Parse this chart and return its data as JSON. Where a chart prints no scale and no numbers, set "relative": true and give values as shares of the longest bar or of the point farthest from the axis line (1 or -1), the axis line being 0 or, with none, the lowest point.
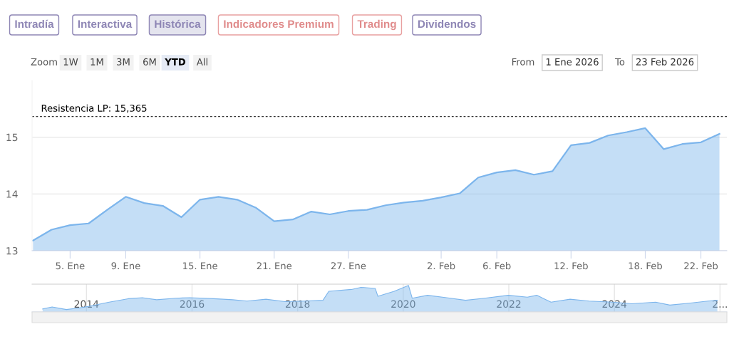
{
  "chart_data": [
    {
      "type": "area",
      "categories": [
        null,
        null,
        "5. Ene",
        null,
        null,
        "9. Ene",
        null,
        null,
        null,
        "15. Ene",
        null,
        null,
        null,
        "21. Ene",
        null,
        null,
        null,
        "27. Ene",
        null,
        null,
        null,
        null,
        "2. Feb",
        null,
        null,
        "6. Feb",
        null,
        null,
        null,
        "12. Feb",
        null,
        null,
        null,
        "18. Feb",
        null,
        null,
        "22. Feb",
        null
      ],
      "series": [
        {
          "color": "#7cb5ec",
          "values": [
            13.18,
            13.37,
            13.45,
            13.48,
            13.72,
            13.95,
            13.84,
            13.79,
            13.59,
            13.9,
            13.95,
            13.9,
            13.76,
            13.52,
            13.55,
            13.69,
            13.64,
            13.7,
            13.72,
            13.8,
            13.85,
            13.88,
            13.94,
            14.01,
            14.29,
            14.38,
            14.42,
            14.34,
            14.4,
            14.86,
            14.9,
            15.03,
            15.09,
            15.16,
            14.79,
            14.88,
            14.91,
            15.06
          ]
        }
      ],
      "ylim": [
        13,
        16
      ],
      "yticks": [
        13,
        14,
        15
      ],
      "grid": "y",
      "ref_lines": [
        {
          "axis": "y",
          "value": 15.365,
          "label": "Resistencia LP: 15,365",
          "color": "#333333",
          "line_style": "dashed"
        }
      ],
      "annotations": [
        "Intradía",
        "Interactiva",
        "Histórica",
        "Indicadores Premium",
        "Trading",
        "Dividendos",
        "Zoom",
        "1W",
        "1M",
        "3M",
        "6M",
        "YTD",
        "All",
        "From",
        "1 Ene 2026",
        "To",
        "23 Feb 2026"
      ]
    },
    {
      "type": "area",
      "relative": true,
      "x": [
        2013.17,
        2013.35,
        2013.62,
        2013.85,
        2014.07,
        2014.43,
        2014.79,
        2015.06,
        2015.33,
        2015.69,
        2015.96,
        2016.41,
        2016.77,
        2017.04,
        2017.4,
        2017.76,
        2018.12,
        2018.48,
        2018.59,
        2019.02,
        2019.2,
        2019.47,
        2019.52,
        2019.83,
        2020.1,
        2020.17,
        2020.46,
        2020.82,
        2021.18,
        2021.54,
        2021.99,
        2022.35,
        2022.53,
        2022.8,
        2023.16,
        2023.52,
        2023.97,
        2024.33,
        2024.78,
        2025.05,
        2025.41,
        2025.77,
        2025.95
      ],
      "series": [
        {
          "color": "#7cb5ec",
          "values": [
            0.11,
            0.19,
            0.09,
            0.15,
            0.22,
            0.37,
            0.5,
            0.54,
            0.46,
            0.52,
            0.54,
            0.5,
            0.46,
            0.41,
            0.48,
            0.39,
            0.41,
            0.44,
            0.78,
            0.85,
            0.93,
            0.89,
            0.59,
            0.78,
            1,
            0.52,
            0.63,
            0.54,
            0.44,
            0.52,
            0.63,
            0.56,
            0.63,
            0.37,
            0.48,
            0.41,
            0.37,
            0.31,
            0.37,
            0.26,
            0.33,
            0.41,
            0.44
          ]
        }
      ],
      "xlim": [
        2012.97,
        2026.13
      ],
      "xticks": [
        2014,
        2016,
        2018,
        2020,
        2022,
        2024,
        {
          "value": 2026,
          "label": "2..."
        }
      ],
      "grid": "x"
    }
  ]
}
